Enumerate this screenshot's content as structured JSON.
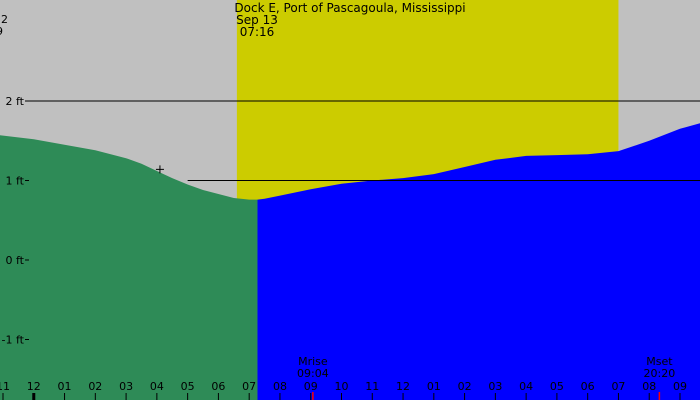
{
  "chart_data": {
    "type": "area",
    "title": "Dock E, Port of Pascagoula, Mississippi",
    "date_label": "Sep 13",
    "time_label": "07:16",
    "corner_label_top": "2",
    "corner_label_bottom": "9",
    "y_unit": "ft",
    "ylim": [
      -1.5,
      3.0
    ],
    "y_ticks": [
      {
        "value": 2,
        "label": "2 ft"
      },
      {
        "value": 1,
        "label": "1 ft"
      },
      {
        "value": 0,
        "label": "0 ft"
      },
      {
        "value": -1,
        "label": "-1 ft"
      }
    ],
    "x_start_hour": 11,
    "x_end_hour": 33.65,
    "x_ticks": [
      {
        "hour": 11,
        "label": "11"
      },
      {
        "hour": 12,
        "label": "12"
      },
      {
        "hour": 13,
        "label": "01"
      },
      {
        "hour": 14,
        "label": "02"
      },
      {
        "hour": 15,
        "label": "03"
      },
      {
        "hour": 16,
        "label": "04"
      },
      {
        "hour": 17,
        "label": "05"
      },
      {
        "hour": 18,
        "label": "06"
      },
      {
        "hour": 19,
        "label": "07"
      },
      {
        "hour": 20,
        "label": "08"
      },
      {
        "hour": 21,
        "label": "09"
      },
      {
        "hour": 22,
        "label": "10"
      },
      {
        "hour": 23,
        "label": "11"
      },
      {
        "hour": 24,
        "label": "12"
      },
      {
        "hour": 25,
        "label": "01"
      },
      {
        "hour": 26,
        "label": "02"
      },
      {
        "hour": 27,
        "label": "03"
      },
      {
        "hour": 28,
        "label": "04"
      },
      {
        "hour": 29,
        "label": "05"
      },
      {
        "hour": 30,
        "label": "06"
      },
      {
        "hour": 31,
        "label": "07"
      },
      {
        "hour": 32,
        "label": "08"
      },
      {
        "hour": 33,
        "label": "09"
      }
    ],
    "daylight": {
      "start_hour": 18.6,
      "end_hour": 31.0
    },
    "now_hour": 19.27,
    "tide": [
      {
        "hour": 11.0,
        "ft": 1.57
      },
      {
        "hour": 12.0,
        "ft": 1.52
      },
      {
        "hour": 13.0,
        "ft": 1.45
      },
      {
        "hour": 14.0,
        "ft": 1.38
      },
      {
        "hour": 15.0,
        "ft": 1.28
      },
      {
        "hour": 15.5,
        "ft": 1.21
      },
      {
        "hour": 16.0,
        "ft": 1.12
      },
      {
        "hour": 16.5,
        "ft": 1.03
      },
      {
        "hour": 17.0,
        "ft": 0.95
      },
      {
        "hour": 17.5,
        "ft": 0.88
      },
      {
        "hour": 18.0,
        "ft": 0.83
      },
      {
        "hour": 18.5,
        "ft": 0.78
      },
      {
        "hour": 19.0,
        "ft": 0.76
      },
      {
        "hour": 19.27,
        "ft": 0.76
      },
      {
        "hour": 19.5,
        "ft": 0.77
      },
      {
        "hour": 20.0,
        "ft": 0.81
      },
      {
        "hour": 21.0,
        "ft": 0.89
      },
      {
        "hour": 22.0,
        "ft": 0.96
      },
      {
        "hour": 23.0,
        "ft": 1.0
      },
      {
        "hour": 24.0,
        "ft": 1.03
      },
      {
        "hour": 25.0,
        "ft": 1.08
      },
      {
        "hour": 26.0,
        "ft": 1.17
      },
      {
        "hour": 27.0,
        "ft": 1.26
      },
      {
        "hour": 28.0,
        "ft": 1.31
      },
      {
        "hour": 29.0,
        "ft": 1.32
      },
      {
        "hour": 30.0,
        "ft": 1.33
      },
      {
        "hour": 31.0,
        "ft": 1.37
      },
      {
        "hour": 32.0,
        "ft": 1.5
      },
      {
        "hour": 33.0,
        "ft": 1.65
      },
      {
        "hour": 33.65,
        "ft": 1.72
      }
    ],
    "reference_lines": [
      {
        "ft": 2,
        "from_hour": 11.8
      },
      {
        "ft": 1,
        "from_hour": 17.0
      }
    ],
    "marker": {
      "hour": 16.1,
      "ft": 1.14
    },
    "moon_events": [
      {
        "label": "Mrise",
        "time": "09:04",
        "hour": 21.07
      },
      {
        "label": "Mset",
        "time": "20:20",
        "hour": 32.33
      }
    ],
    "colors": {
      "background": "#c0c0c0",
      "daylight": "#cccc00",
      "past_fill": "#2e8b57",
      "future_fill": "#0000ff",
      "moon_tick": "#ff0000"
    }
  }
}
